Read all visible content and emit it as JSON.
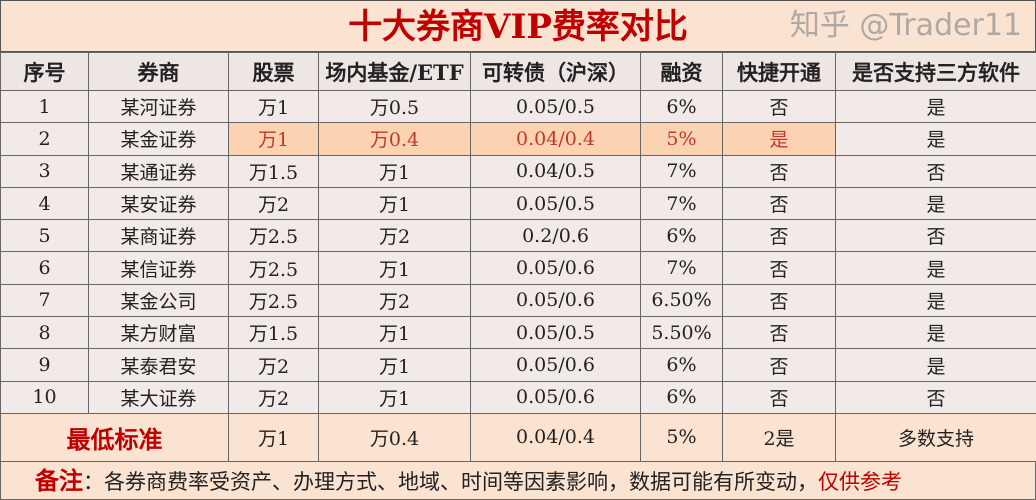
{
  "title": "十大券商VIP费率对比",
  "headers": [
    "序号",
    "券商",
    "股票",
    "场内基金/ETF",
    "可转债（沪深）",
    "融资",
    "快捷开通",
    "是否支持三方软件"
  ],
  "rows": [
    [
      "1",
      "某河证券",
      "万1",
      "万0.5",
      "0.05/0.5",
      "6%",
      "否",
      "是"
    ],
    [
      "2",
      "某金证券",
      "万1",
      "万0.4",
      "0.04/0.4",
      "5%",
      "是",
      "是"
    ],
    [
      "3",
      "某通证券",
      "万1.5",
      "万1",
      "0.04/0.5",
      "7%",
      "否",
      "否"
    ],
    [
      "4",
      "某安证券",
      "万2",
      "万1",
      "0.05/0.5",
      "7%",
      "否",
      "是"
    ],
    [
      "5",
      "某商证券",
      "万2.5",
      "万2",
      "0.2/0.6",
      "6%",
      "否",
      "否"
    ],
    [
      "6",
      "某信证券",
      "万2.5",
      "万1",
      "0.05/0.6",
      "7%",
      "否",
      "是"
    ],
    [
      "7",
      "某金公司",
      "万2.5",
      "万2",
      "0.05/0.6",
      "6.50%",
      "否",
      "是"
    ],
    [
      "8",
      "某方财富",
      "万1.5",
      "万1",
      "0.05/0.5",
      "5.50%",
      "否",
      "是"
    ],
    [
      "9",
      "某泰君安",
      "万2",
      "万1",
      "0.05/0.6",
      "6%",
      "否",
      "是"
    ],
    [
      "10",
      "某大证券",
      "万2",
      "万1",
      "0.05/0.6",
      "6%",
      "否",
      "否"
    ]
  ],
  "minimum": {
    "label": "最低标准",
    "values": [
      "万1",
      "万0.4",
      "0.04/0.4",
      "5%",
      "2是",
      "多数支持"
    ]
  },
  "note": {
    "label": "备注",
    "colon": "：",
    "text": "各券商费率受资产、办理方式、地域、时间等因素影响，数据可能有所变动，",
    "highlight": "仅供参考"
  },
  "watermark": "知乎 @Trader11",
  "colors": {
    "title": "#c00000",
    "highlight_row": "#fcd3b2",
    "background": "#fbe3d2"
  }
}
